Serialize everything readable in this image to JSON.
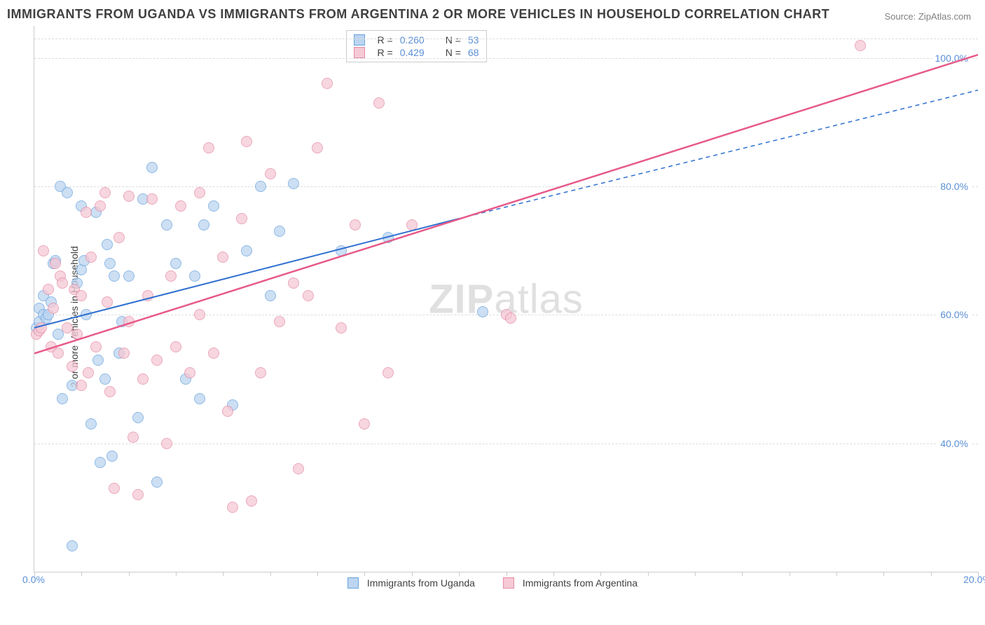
{
  "title": "IMMIGRANTS FROM UGANDA VS IMMIGRANTS FROM ARGENTINA 2 OR MORE VEHICLES IN HOUSEHOLD CORRELATION CHART",
  "source": "Source: ZipAtlas.com",
  "ylabel": "2 or more Vehicles in Household",
  "watermark_bold": "ZIP",
  "watermark_rest": "atlas",
  "chart": {
    "type": "scatter",
    "xlim": [
      0,
      20
    ],
    "ylim": [
      20,
      105
    ],
    "xticks": [
      0,
      20
    ],
    "xtick_labels": [
      "0.0%",
      "20.0%"
    ],
    "xtick_minor": [
      1,
      2,
      3,
      4,
      5,
      6,
      7,
      8,
      9,
      10,
      11,
      12,
      13,
      14,
      15,
      16,
      17,
      18,
      19
    ],
    "yticks": [
      40,
      60,
      80,
      100
    ],
    "ytick_labels": [
      "40.0%",
      "60.0%",
      "80.0%",
      "100.0%"
    ],
    "grid_color": "#dddddd",
    "axis_color": "#cccccc",
    "background_color": "#ffffff",
    "label_color": "#5a8fd6",
    "title_color": "#404040"
  },
  "series": [
    {
      "name": "Immigrants from Uganda",
      "fill": "#bcd5f0",
      "stroke": "#6aa3de",
      "line_color": "#2e6fd0",
      "R": "0.260",
      "N": "53",
      "trend": {
        "x1": 0,
        "y1": 58,
        "x2_solid": 9,
        "y2_solid": 75,
        "x2": 20,
        "y2": 95,
        "dashed_after_solid": true,
        "width": 2
      },
      "points": [
        [
          0.05,
          58
        ],
        [
          0.1,
          59
        ],
        [
          0.1,
          61
        ],
        [
          0.2,
          63
        ],
        [
          0.2,
          60
        ],
        [
          0.25,
          59.5
        ],
        [
          0.3,
          60
        ],
        [
          0.35,
          62
        ],
        [
          0.4,
          68
        ],
        [
          0.45,
          68.5
        ],
        [
          0.5,
          57
        ],
        [
          0.55,
          80
        ],
        [
          0.6,
          47
        ],
        [
          0.7,
          79
        ],
        [
          0.8,
          49
        ],
        [
          0.9,
          65
        ],
        [
          1.0,
          77
        ],
        [
          1.0,
          67
        ],
        [
          1.05,
          68.5
        ],
        [
          1.1,
          60
        ],
        [
          1.2,
          43
        ],
        [
          1.3,
          76
        ],
        [
          1.35,
          53
        ],
        [
          1.4,
          37
        ],
        [
          1.5,
          50
        ],
        [
          1.55,
          71
        ],
        [
          1.6,
          68
        ],
        [
          1.65,
          38
        ],
        [
          1.7,
          66
        ],
        [
          1.8,
          54
        ],
        [
          1.85,
          59
        ],
        [
          2.0,
          66
        ],
        [
          2.2,
          44
        ],
        [
          2.3,
          78
        ],
        [
          2.5,
          83
        ],
        [
          2.6,
          34
        ],
        [
          2.8,
          74
        ],
        [
          3.0,
          68
        ],
        [
          3.2,
          50
        ],
        [
          3.4,
          66
        ],
        [
          3.5,
          47
        ],
        [
          3.6,
          74
        ],
        [
          3.8,
          77
        ],
        [
          4.2,
          46
        ],
        [
          4.5,
          70
        ],
        [
          4.8,
          80
        ],
        [
          5.0,
          63
        ],
        [
          5.2,
          73
        ],
        [
          5.5,
          80.5
        ],
        [
          6.5,
          70
        ],
        [
          7.5,
          72
        ],
        [
          9.5,
          60.5
        ],
        [
          0.8,
          24
        ]
      ]
    },
    {
      "name": "Immigrants from Argentina",
      "fill": "#f5c9d5",
      "stroke": "#e58ba5",
      "line_color": "#e75a8a",
      "R": "0.429",
      "N": "68",
      "trend": {
        "x1": 0,
        "y1": 54,
        "x2_solid": 20,
        "y2_solid": 100.5,
        "x2": 20,
        "y2": 100.5,
        "dashed_after_solid": false,
        "width": 2.5
      },
      "points": [
        [
          0.05,
          57
        ],
        [
          0.1,
          57.5
        ],
        [
          0.15,
          58
        ],
        [
          0.2,
          70
        ],
        [
          0.3,
          64
        ],
        [
          0.35,
          55
        ],
        [
          0.4,
          61
        ],
        [
          0.45,
          68
        ],
        [
          0.5,
          54
        ],
        [
          0.55,
          66
        ],
        [
          0.6,
          65
        ],
        [
          0.7,
          58
        ],
        [
          0.8,
          52
        ],
        [
          0.85,
          64
        ],
        [
          0.9,
          57
        ],
        [
          1.0,
          63
        ],
        [
          1.1,
          76
        ],
        [
          1.15,
          51
        ],
        [
          1.2,
          69
        ],
        [
          1.3,
          55
        ],
        [
          1.4,
          77
        ],
        [
          1.5,
          79
        ],
        [
          1.55,
          62
        ],
        [
          1.6,
          48
        ],
        [
          1.7,
          33
        ],
        [
          1.8,
          72
        ],
        [
          1.9,
          54
        ],
        [
          2.0,
          59
        ],
        [
          2.1,
          41
        ],
        [
          2.2,
          32
        ],
        [
          2.3,
          50
        ],
        [
          2.4,
          63
        ],
        [
          2.5,
          78
        ],
        [
          2.6,
          53
        ],
        [
          2.8,
          40
        ],
        [
          2.9,
          66
        ],
        [
          3.0,
          55
        ],
        [
          3.1,
          77
        ],
        [
          3.3,
          51
        ],
        [
          3.5,
          60
        ],
        [
          3.7,
          86
        ],
        [
          3.8,
          54
        ],
        [
          4.0,
          69
        ],
        [
          4.1,
          45
        ],
        [
          4.4,
          75
        ],
        [
          4.5,
          87
        ],
        [
          4.6,
          31
        ],
        [
          4.8,
          51
        ],
        [
          5.0,
          82
        ],
        [
          5.2,
          59
        ],
        [
          5.5,
          65
        ],
        [
          5.6,
          36
        ],
        [
          5.8,
          63
        ],
        [
          6.0,
          86
        ],
        [
          6.2,
          96
        ],
        [
          6.5,
          58
        ],
        [
          6.8,
          74
        ],
        [
          7.0,
          43
        ],
        [
          7.3,
          93
        ],
        [
          7.5,
          51
        ],
        [
          8.0,
          74
        ],
        [
          10.0,
          60
        ],
        [
          10.1,
          59.5
        ],
        [
          17.5,
          102
        ],
        [
          1.0,
          49
        ],
        [
          2.0,
          78.5
        ],
        [
          3.5,
          79
        ],
        [
          4.2,
          30
        ]
      ]
    }
  ],
  "legend": {
    "items": [
      {
        "label": "Immigrants from Uganda",
        "fill": "#bcd5f0",
        "stroke": "#6aa3de"
      },
      {
        "label": "Immigrants from Argentina",
        "fill": "#f5c9d5",
        "stroke": "#e58ba5"
      }
    ]
  }
}
